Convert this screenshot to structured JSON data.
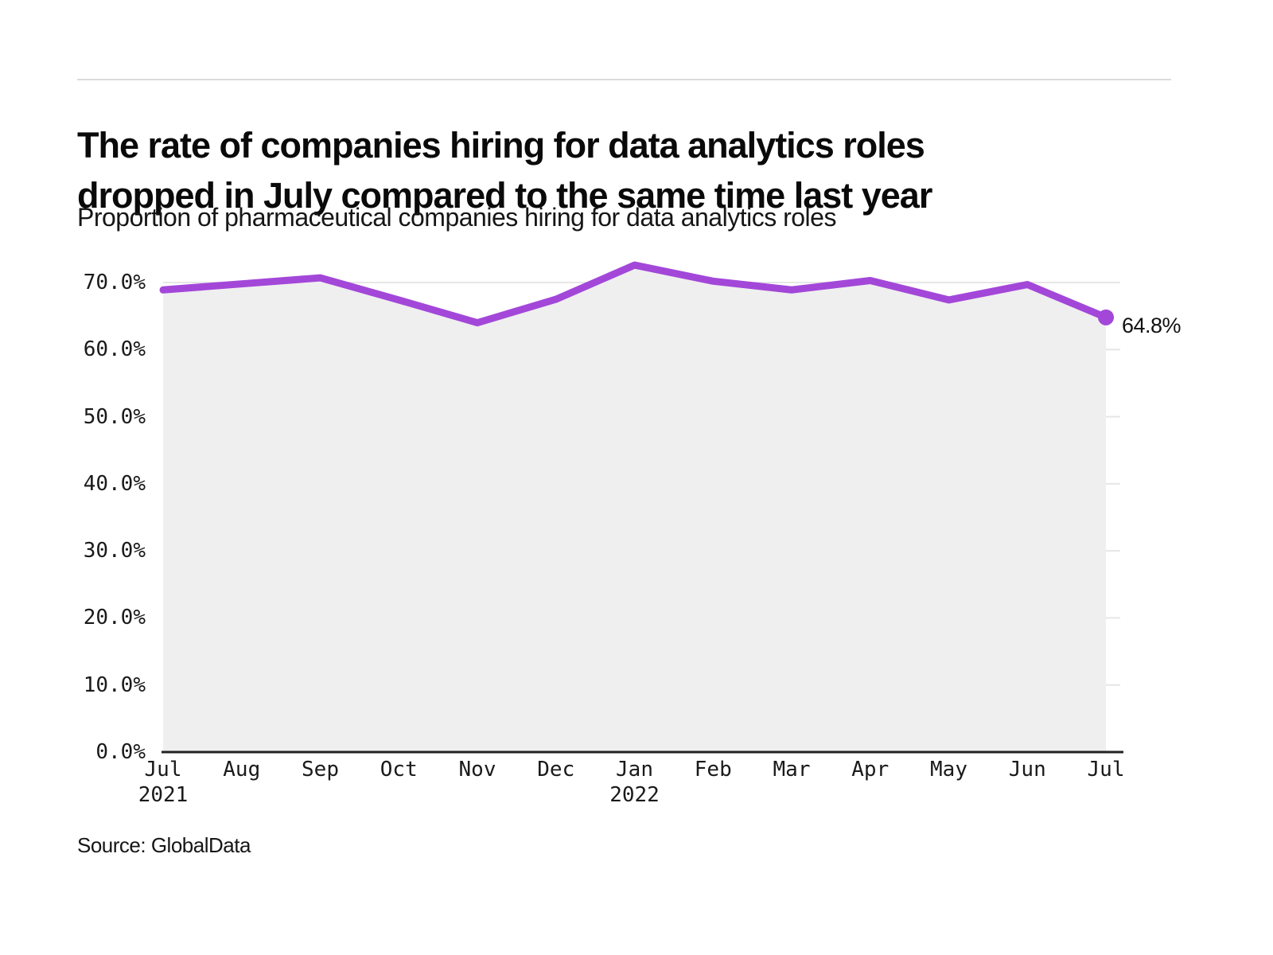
{
  "page": {
    "title_line1": "The rate of companies hiring for data analytics roles",
    "title_line2": "dropped in July compared to the same time last year",
    "source": "Source: GlobalData"
  },
  "colors": {
    "line": "#a347d9",
    "area_fill": "#efefef",
    "grid": "#e6e6e6",
    "axis": "#222222",
    "top_rule": "#dbdbdb",
    "text": "#111111"
  },
  "chart_data": {
    "type": "line",
    "title": "The rate of companies hiring for data analytics roles dropped in July compared to the same time last year",
    "subtitle": "Proportion of pharmaceutical companies hiring for data analytics roles",
    "categories": [
      "Jul",
      "Aug",
      "Sep",
      "Oct",
      "Nov",
      "Dec",
      "Jan",
      "Feb",
      "Mar",
      "Apr",
      "May",
      "Jun",
      "Jul"
    ],
    "year_markers": [
      {
        "index": 0,
        "label": "2021"
      },
      {
        "index": 6,
        "label": "2022"
      }
    ],
    "series": [
      {
        "name": "Proportion of pharmaceutical companies hiring for data analytics roles",
        "values": [
          68.9,
          69.8,
          70.7,
          67.4,
          64.0,
          67.5,
          72.6,
          70.2,
          68.9,
          70.3,
          67.4,
          69.7,
          64.8
        ]
      }
    ],
    "end_label": "64.8%",
    "yticks": [
      0,
      10,
      20,
      30,
      40,
      50,
      60,
      70
    ],
    "ytick_labels": [
      "0.0%",
      "10.0%",
      "20.0%",
      "30.0%",
      "40.0%",
      "50.0%",
      "60.0%",
      "70.0%"
    ],
    "ylim": [
      0,
      75
    ],
    "xlabel": "",
    "ylabel": "",
    "grid": true,
    "legend": false,
    "source": "Source: GlobalData"
  }
}
